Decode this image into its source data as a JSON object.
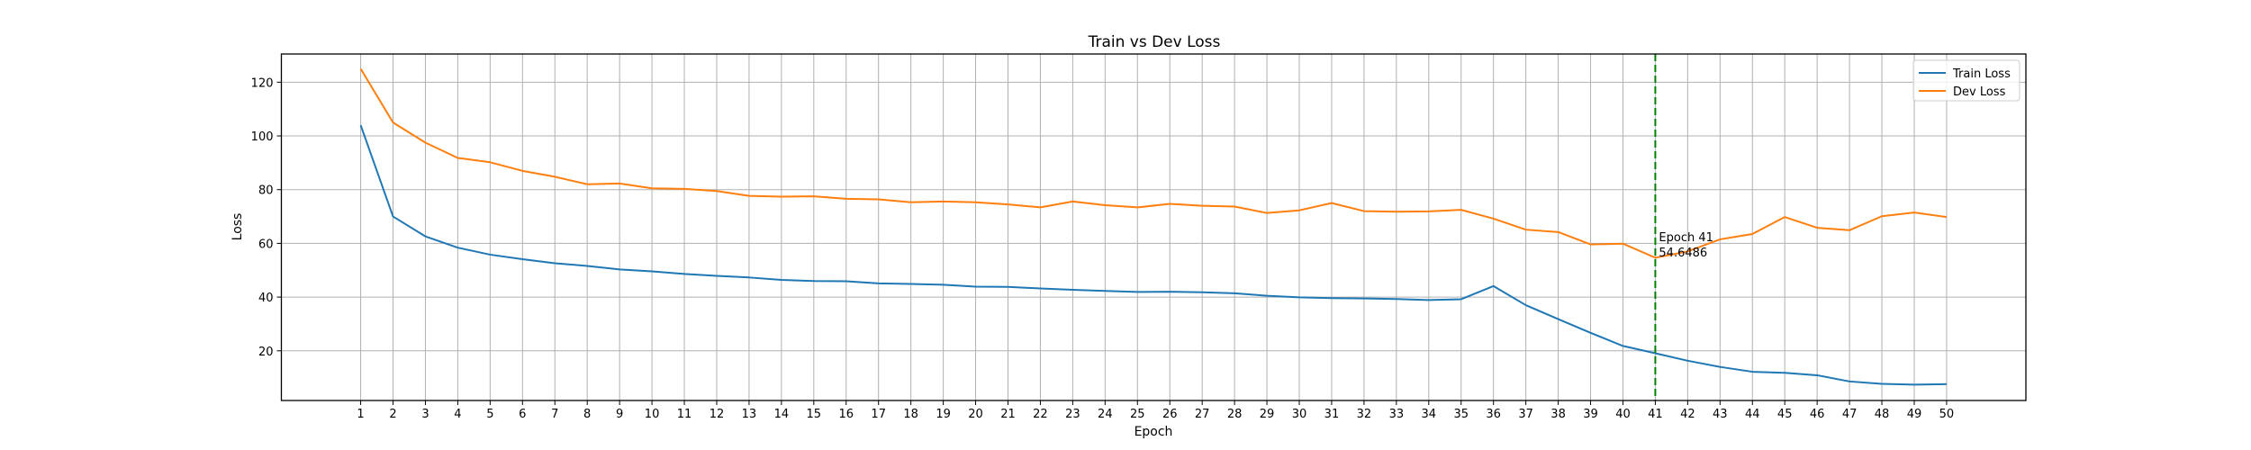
{
  "chart_data": {
    "type": "line",
    "title": "Train vs Dev Loss",
    "xlabel": "Epoch",
    "ylabel": "Loss",
    "x": [
      1,
      2,
      3,
      4,
      5,
      6,
      7,
      8,
      9,
      10,
      11,
      12,
      13,
      14,
      15,
      16,
      17,
      18,
      19,
      20,
      21,
      22,
      23,
      24,
      25,
      26,
      27,
      28,
      29,
      30,
      31,
      32,
      33,
      34,
      35,
      36,
      37,
      38,
      39,
      40,
      41,
      42,
      43,
      44,
      45,
      46,
      47,
      48,
      49,
      50
    ],
    "xlim": [
      -1.45,
      52.45
    ],
    "ylim": [
      1.5,
      130.5
    ],
    "yticks": [
      20,
      40,
      60,
      80,
      100,
      120
    ],
    "grid": true,
    "legend_position": "top-right",
    "series": [
      {
        "name": "Train Loss",
        "color": "#1f77b4",
        "values": [
          104.0,
          70.0,
          62.6,
          58.4,
          55.8,
          54.1,
          52.6,
          51.6,
          50.3,
          49.6,
          48.6,
          47.9,
          47.3,
          46.4,
          46.0,
          45.9,
          45.1,
          44.9,
          44.6,
          43.9,
          43.8,
          43.2,
          42.7,
          42.3,
          41.9,
          42.0,
          41.8,
          41.4,
          40.5,
          39.9,
          39.6,
          39.5,
          39.3,
          38.9,
          39.2,
          44.1,
          37.0,
          31.8,
          26.7,
          21.8,
          19.1,
          16.3,
          14.0,
          12.2,
          11.8,
          10.9,
          8.6,
          7.7,
          7.4,
          7.6
        ]
      },
      {
        "name": "Dev Loss",
        "color": "#ff7f0e",
        "values": [
          125.0,
          105.0,
          97.5,
          91.8,
          90.2,
          87.0,
          84.8,
          82.0,
          82.3,
          80.5,
          80.3,
          79.5,
          77.7,
          77.4,
          77.5,
          76.6,
          76.4,
          75.3,
          75.6,
          75.3,
          74.5,
          73.4,
          75.6,
          74.2,
          73.4,
          74.7,
          74.0,
          73.7,
          71.3,
          72.3,
          75.0,
          72.0,
          71.8,
          71.9,
          72.5,
          69.2,
          65.1,
          64.2,
          59.6,
          59.9,
          54.65,
          57.0,
          61.5,
          63.5,
          69.8,
          65.8,
          64.9,
          70.1,
          71.5,
          69.8
        ]
      }
    ],
    "marker": {
      "epoch": 41,
      "color": "#008000",
      "label_line1": "Epoch 41",
      "label_line2": "54.6486"
    }
  }
}
